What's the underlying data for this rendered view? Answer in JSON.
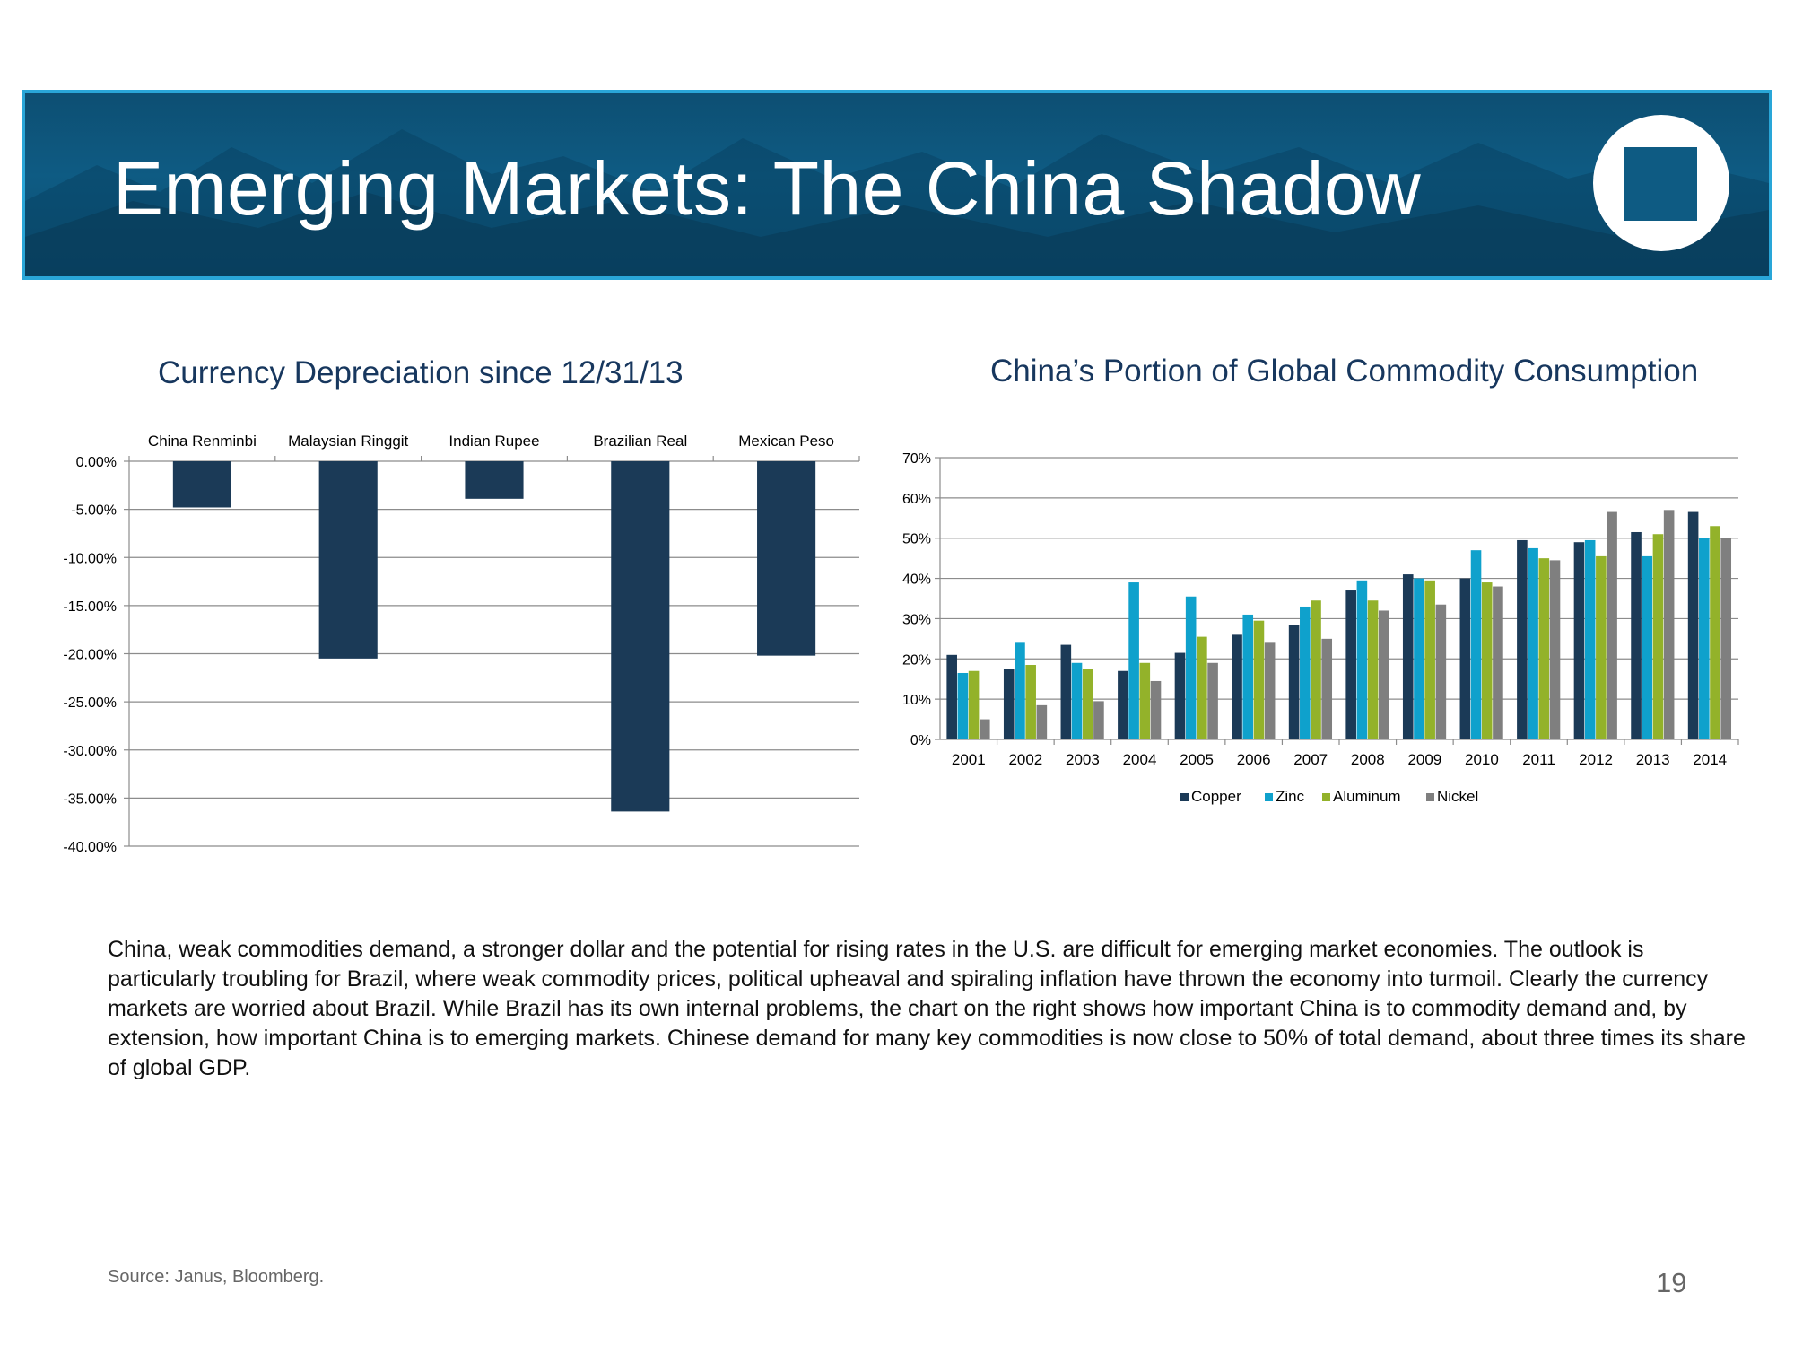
{
  "header": {
    "title": "Emerging Markets: The China Shadow",
    "colors": {
      "banner": "#0e5b83",
      "border": "#29a6d8"
    },
    "logo_icon": "square-logo-icon"
  },
  "chart_data": [
    {
      "id": "currency",
      "type": "bar",
      "title": "Currency Depreciation since 12/31/13",
      "categories": [
        "China Renminbi",
        "Malaysian Ringgit",
        "Indian Rupee",
        "Brazilian Real",
        "Mexican Peso"
      ],
      "values": [
        -4.8,
        -20.5,
        -3.9,
        -36.4,
        -20.2
      ],
      "ylim": [
        -40,
        0
      ],
      "yticks": [
        0,
        -5,
        -10,
        -15,
        -20,
        -25,
        -30,
        -35,
        -40
      ],
      "ytick_labels": [
        "0.00%",
        "-5.00%",
        "-10.00%",
        "-15.00%",
        "-20.00%",
        "-25.00%",
        "-30.00%",
        "-35.00%",
        "-40.00%"
      ],
      "category_axis": "top",
      "grid": true,
      "color": "#1b3a57"
    },
    {
      "id": "commodity",
      "type": "bar",
      "title": "China’s Portion of Global Commodity Consumption",
      "categories": [
        "2001",
        "2002",
        "2003",
        "2004",
        "2005",
        "2006",
        "2007",
        "2008",
        "2009",
        "2010",
        "2011",
        "2012",
        "2013",
        "2014"
      ],
      "series": [
        {
          "name": "Copper",
          "color": "#1b3a57",
          "values": [
            21,
            17.5,
            23.5,
            17,
            21.5,
            26,
            28.5,
            37,
            41,
            40,
            49.5,
            49,
            51.5,
            56.5
          ]
        },
        {
          "name": "Zinc",
          "color": "#0fa1cc",
          "values": [
            16.5,
            24,
            19,
            39,
            35.5,
            31,
            33,
            39.5,
            40,
            47,
            47.5,
            49.5,
            45.5,
            50
          ]
        },
        {
          "name": "Aluminum",
          "color": "#93b22a",
          "values": [
            17,
            18.5,
            17.5,
            19,
            25.5,
            29.5,
            34.5,
            34.5,
            39.5,
            39,
            45,
            45.5,
            51,
            53
          ]
        },
        {
          "name": "Nickel",
          "color": "#7f7f7f",
          "values": [
            5,
            8.5,
            9.5,
            14.5,
            19,
            24,
            25,
            32,
            33.5,
            38,
            44.5,
            56.5,
            57,
            50
          ]
        }
      ],
      "ylim": [
        0,
        70
      ],
      "yticks": [
        0,
        10,
        20,
        30,
        40,
        50,
        60,
        70
      ],
      "ytick_labels": [
        "0%",
        "10%",
        "20%",
        "30%",
        "40%",
        "50%",
        "60%",
        "70%"
      ],
      "legend": "bottom",
      "grid": true
    }
  ],
  "commentary": "China, weak commodities demand, a stronger dollar and the potential for rising rates in the U.S. are difficult for emerging market economies. The outlook is particularly troubling for Brazil, where weak commodity prices, political upheaval and spiraling inflation have thrown the economy into turmoil. Clearly the currency markets are worried about Brazil. While Brazil has its own internal problems, the chart on the right shows how important China is to commodity demand and, by extension, how important China is to emerging markets. Chinese demand for many key commodities is now close to 50% of total demand, about three times its share of global GDP.",
  "footer": {
    "source": "Source: Janus, Bloomberg.",
    "page_number": "19"
  }
}
